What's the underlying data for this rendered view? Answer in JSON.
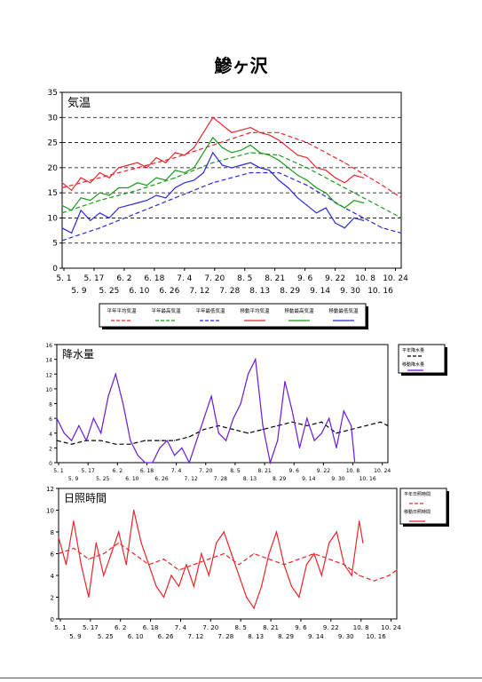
{
  "title": "鰺ヶ沢",
  "chart_data": [
    {
      "type": "line",
      "panel_label": "気温",
      "ylim": [
        0,
        35
      ],
      "yticks": [
        0,
        5,
        10,
        15,
        20,
        25,
        30,
        35
      ],
      "grid": "dashed horizontal",
      "x_ticks_row1": [
        "5. 1",
        "5. 17",
        "6. 2",
        "6. 18",
        "7. 4",
        "7. 20",
        "8. 5",
        "8. 21",
        "9. 6",
        "9. 22",
        "10. 8",
        "10. 24"
      ],
      "x_ticks_row2": [
        "5. 9",
        "5. 25",
        "6. 10",
        "6. 26",
        "7. 12",
        "7. 28",
        "8. 13",
        "8. 29",
        "9. 14",
        "9. 30",
        "10. 16"
      ],
      "legend_labels": [
        "平年平均気温",
        "平年最高気温",
        "平年最低気温",
        "移動平均気温",
        "移動最高気温",
        "移動最低気温"
      ],
      "legend_placement": "bottom",
      "colors": {
        "max": "#e8262a",
        "mean": "#1a9a1a",
        "min": "#2a2ad8"
      },
      "series": [
        {
          "key": "normal_max",
          "color": "#e8262a",
          "dash": true,
          "x": [
            0,
            20,
            40,
            60,
            80,
            100,
            115,
            130,
            150,
            170,
            180
          ],
          "y": [
            16,
            18,
            20,
            22,
            24.5,
            27,
            27,
            25,
            21,
            16.5,
            14
          ]
        },
        {
          "key": "normal_mean",
          "color": "#1a9a1a",
          "dash": true,
          "x": [
            0,
            20,
            40,
            60,
            80,
            100,
            115,
            130,
            150,
            170,
            180
          ],
          "y": [
            11,
            13.5,
            15.5,
            18,
            21,
            23,
            22.5,
            20,
            16,
            12,
            10
          ]
        },
        {
          "key": "normal_min",
          "color": "#2a2ad8",
          "dash": true,
          "x": [
            0,
            20,
            40,
            60,
            80,
            100,
            115,
            130,
            150,
            170,
            180
          ],
          "y": [
            5.5,
            8,
            11,
            14,
            17,
            19,
            19,
            16.5,
            12,
            8,
            7
          ]
        },
        {
          "key": "moving_max",
          "color": "#e8262a",
          "dash": false,
          "x": [
            0,
            5,
            10,
            15,
            20,
            25,
            30,
            35,
            40,
            45,
            50,
            55,
            60,
            65,
            70,
            75,
            80,
            85,
            90,
            95,
            100,
            105,
            110,
            115,
            120,
            125,
            130,
            135,
            140,
            145,
            150,
            155,
            160
          ],
          "y": [
            17,
            15.5,
            18,
            17,
            19,
            18,
            20,
            20.5,
            21,
            20,
            22,
            21,
            23,
            22.5,
            24,
            27,
            30,
            28.5,
            27,
            27.5,
            28,
            27,
            26.5,
            25.5,
            24,
            22.5,
            22,
            20,
            19.5,
            18,
            17,
            18.5,
            18
          ]
        },
        {
          "key": "moving_mean",
          "color": "#1a9a1a",
          "dash": false,
          "x": [
            0,
            5,
            10,
            15,
            20,
            25,
            30,
            35,
            40,
            45,
            50,
            55,
            60,
            65,
            70,
            75,
            80,
            85,
            90,
            95,
            100,
            105,
            110,
            115,
            120,
            125,
            130,
            135,
            140,
            145,
            150,
            155,
            160
          ],
          "y": [
            12.5,
            11.5,
            14,
            13.5,
            15,
            14.5,
            16,
            16,
            17,
            16.5,
            18,
            17.5,
            19.5,
            19,
            20,
            23,
            26,
            24,
            23,
            23.5,
            24.5,
            23,
            22.5,
            21.5,
            20,
            18.5,
            17.5,
            16,
            15,
            13,
            12,
            13.5,
            13
          ]
        },
        {
          "key": "moving_min",
          "color": "#2a2ad8",
          "dash": false,
          "x": [
            0,
            5,
            10,
            15,
            20,
            25,
            30,
            35,
            40,
            45,
            50,
            55,
            60,
            65,
            70,
            75,
            80,
            85,
            90,
            95,
            100,
            105,
            110,
            115,
            120,
            125,
            130,
            135,
            140,
            145,
            150,
            155,
            160
          ],
          "y": [
            8,
            7,
            11.5,
            9.5,
            11,
            10,
            12,
            12.5,
            13,
            13.5,
            14.5,
            14,
            16,
            17,
            17.5,
            19,
            23,
            20.5,
            20,
            20.5,
            21,
            20,
            19.5,
            17.5,
            16,
            14,
            12.5,
            11,
            12,
            9,
            8,
            10,
            9.5
          ]
        }
      ]
    },
    {
      "type": "line",
      "panel_label": "降水量",
      "ylim": [
        0,
        16
      ],
      "yticks": [
        0,
        2,
        4,
        6,
        8,
        10,
        12,
        14,
        16
      ],
      "grid": "none",
      "x_ticks_row1": [
        "5. 1",
        "5. 17",
        "6. 2",
        "6. 18",
        "7. 4",
        "7. 20",
        "8. 5",
        "8. 21",
        "9. 6",
        "9. 22",
        "10. 8",
        "10. 24"
      ],
      "x_ticks_row2": [
        "5. 9",
        "5. 25",
        "6. 10",
        "6. 26",
        "7. 12",
        "7. 28",
        "8. 13",
        "8. 29",
        "9. 14",
        "9. 30",
        "10. 16"
      ],
      "legend_labels": [
        "平年降水量",
        "移動降水量"
      ],
      "legend_placement": "right",
      "series": [
        {
          "key": "normal_precip",
          "color": "#000000",
          "dash": true,
          "x": [
            0,
            8,
            16,
            24,
            32,
            40,
            48,
            56,
            64,
            72,
            80,
            88,
            96,
            104,
            112,
            120,
            128,
            136,
            144,
            152,
            160,
            168,
            176,
            180
          ],
          "y": [
            3,
            2.5,
            3,
            3,
            2.5,
            2.5,
            3,
            3,
            3,
            3.5,
            4.5,
            5,
            4.5,
            4,
            4.5,
            5,
            5.5,
            5,
            5.5,
            4,
            4.5,
            5,
            5.5,
            5
          ]
        },
        {
          "key": "moving_precip",
          "color": "#6a1ad8",
          "dash": false,
          "x": [
            0,
            4,
            8,
            12,
            16,
            20,
            24,
            28,
            32,
            36,
            40,
            44,
            48,
            52,
            56,
            60,
            64,
            68,
            72,
            76,
            80,
            84,
            88,
            92,
            96,
            100,
            104,
            108,
            112,
            116,
            120,
            124,
            128,
            132,
            136,
            140,
            144,
            148,
            152,
            156,
            160,
            162
          ],
          "y": [
            6,
            4,
            3,
            5,
            3,
            6,
            4,
            9,
            12,
            8,
            3,
            1,
            0,
            0,
            2,
            3,
            1,
            2,
            0,
            3,
            6,
            9,
            4,
            3,
            6,
            8,
            12,
            14,
            5,
            0,
            3,
            11,
            7,
            2,
            6,
            3,
            4,
            6,
            2,
            7,
            5,
            0
          ]
        }
      ]
    },
    {
      "type": "line",
      "panel_label": "日照時間",
      "ylim": [
        0,
        12
      ],
      "yticks": [
        0,
        2,
        4,
        6,
        8,
        10,
        12
      ],
      "grid": "none",
      "x_ticks_row1": [
        "5. 1",
        "5. 17",
        "6. 2",
        "6. 18",
        "7. 4",
        "7. 20",
        "8. 5",
        "8. 21",
        "9. 6",
        "9. 22",
        "10. 8",
        "10. 24"
      ],
      "x_ticks_row2": [
        "5. 9",
        "5. 25",
        "6. 10",
        "6. 26",
        "7. 12",
        "7. 28",
        "8. 13",
        "8. 29",
        "9. 14",
        "9. 30",
        "10. 16"
      ],
      "legend_labels": [
        "平年日照時間",
        "移動日照時間"
      ],
      "legend_placement": "right",
      "series": [
        {
          "key": "normal_sun",
          "color": "#e8262a",
          "dash": true,
          "x": [
            0,
            8,
            16,
            24,
            32,
            40,
            48,
            56,
            64,
            72,
            80,
            88,
            96,
            104,
            112,
            120,
            128,
            136,
            144,
            152,
            160,
            168,
            176,
            180
          ],
          "y": [
            6,
            6.5,
            5.5,
            6,
            7,
            6,
            5,
            5.5,
            4.5,
            5,
            5.5,
            6,
            5,
            6,
            5.5,
            5,
            5.5,
            6,
            5.5,
            5,
            4,
            3.5,
            4,
            4.5
          ]
        },
        {
          "key": "moving_sun",
          "color": "#e8262a",
          "dash": false,
          "x": [
            0,
            4,
            8,
            12,
            16,
            20,
            24,
            28,
            32,
            36,
            40,
            44,
            48,
            52,
            56,
            60,
            64,
            68,
            72,
            76,
            80,
            84,
            88,
            92,
            96,
            100,
            104,
            108,
            112,
            116,
            120,
            124,
            128,
            132,
            136,
            140,
            144,
            148,
            152,
            156,
            160,
            162
          ],
          "y": [
            7.5,
            5,
            9,
            5,
            2,
            7,
            4,
            6,
            8,
            5,
            10,
            7,
            5,
            3,
            2,
            4,
            3,
            5,
            3,
            6,
            4,
            7,
            8,
            6,
            4,
            2,
            1,
            3,
            6,
            8,
            5,
            3,
            2,
            5,
            6,
            4,
            7,
            8,
            5,
            4,
            9,
            7
          ]
        }
      ]
    }
  ]
}
